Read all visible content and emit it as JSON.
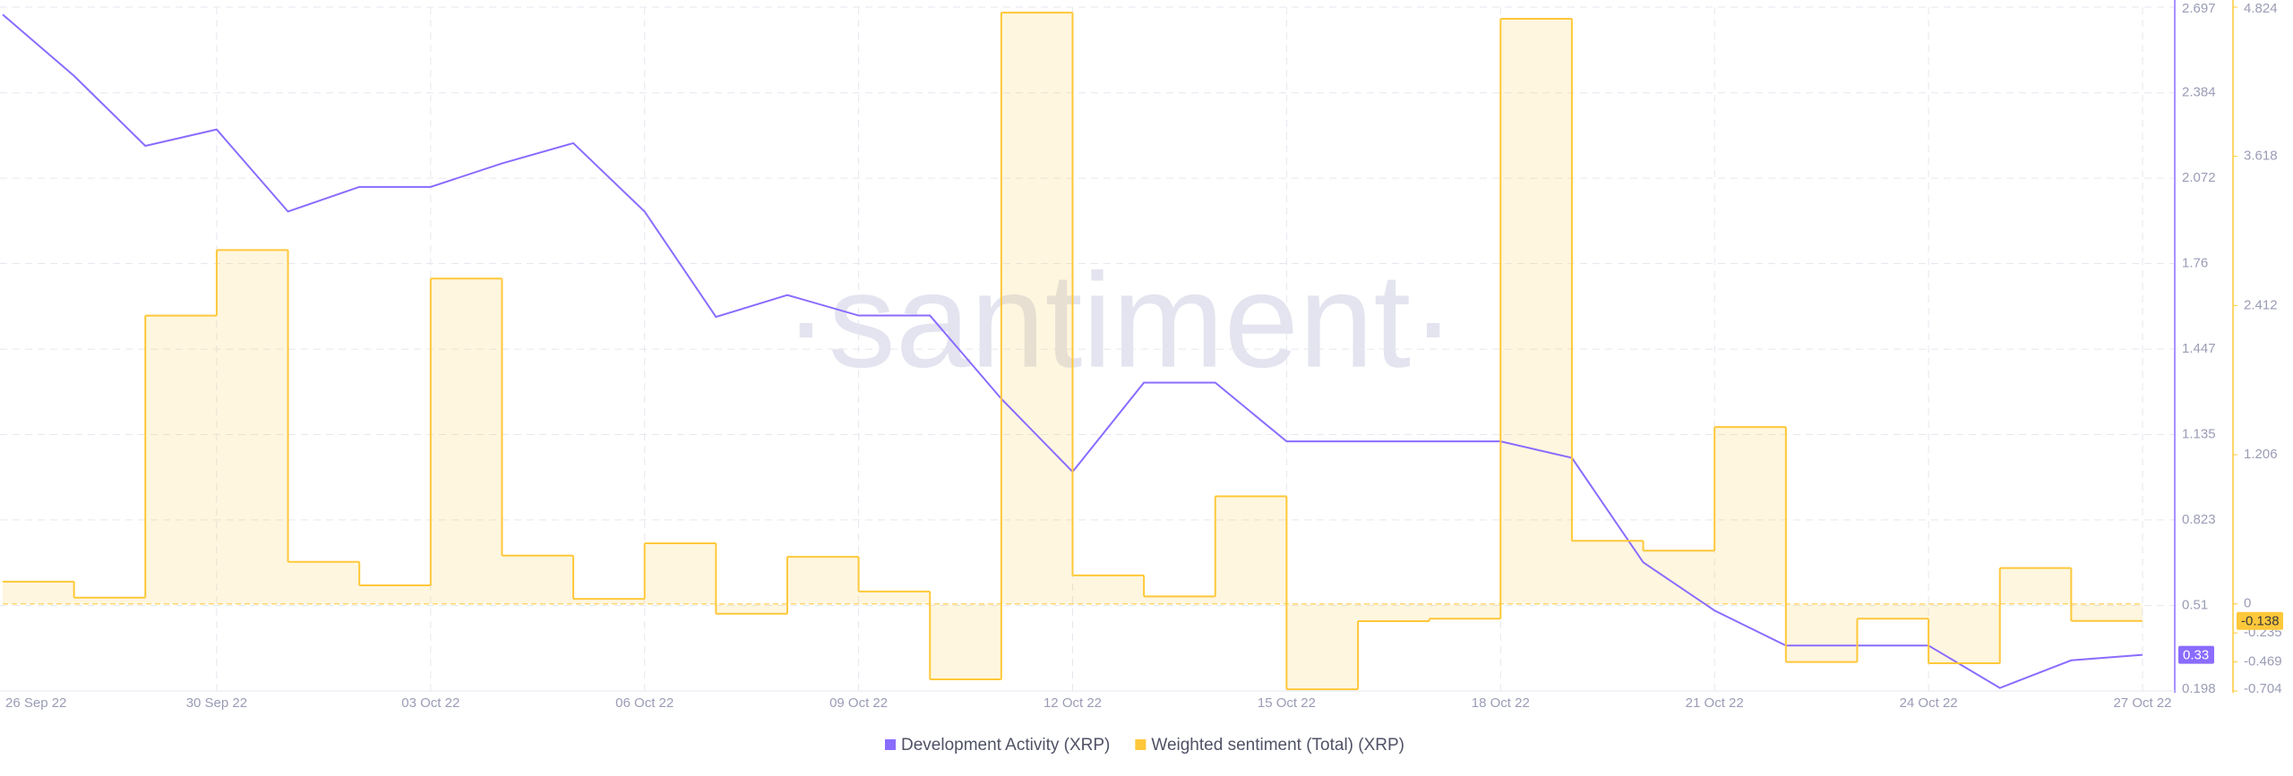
{
  "chart_data": {
    "type": "line",
    "watermark": "·santiment·",
    "x": [
      "2022-09-27",
      "2022-09-28",
      "2022-09-29",
      "2022-09-30",
      "2022-10-01",
      "2022-10-02",
      "2022-10-03",
      "2022-10-04",
      "2022-10-05",
      "2022-10-06",
      "2022-10-07",
      "2022-10-08",
      "2022-10-09",
      "2022-10-10",
      "2022-10-11",
      "2022-10-12",
      "2022-10-13",
      "2022-10-14",
      "2022-10-15",
      "2022-10-16",
      "2022-10-17",
      "2022-10-18",
      "2022-10-19",
      "2022-10-20",
      "2022-10-21",
      "2022-10-22",
      "2022-10-23",
      "2022-10-24",
      "2022-10-25",
      "2022-10-26",
      "2022-10-27"
    ],
    "xlim": [
      "2022-09-27",
      "2022-10-27"
    ],
    "xticks": [
      {
        "value": "2022-09-26",
        "label": "26 Sep 22"
      },
      {
        "value": "2022-09-30",
        "label": "30 Sep 22"
      },
      {
        "value": "2022-10-03",
        "label": "03 Oct 22"
      },
      {
        "value": "2022-10-06",
        "label": "06 Oct 22"
      },
      {
        "value": "2022-10-09",
        "label": "09 Oct 22"
      },
      {
        "value": "2022-10-12",
        "label": "12 Oct 22"
      },
      {
        "value": "2022-10-15",
        "label": "15 Oct 22"
      },
      {
        "value": "2022-10-18",
        "label": "18 Oct 22"
      },
      {
        "value": "2022-10-21",
        "label": "21 Oct 22"
      },
      {
        "value": "2022-10-24",
        "label": "24 Oct 22"
      },
      {
        "value": "2022-10-27",
        "label": "27 Oct 22"
      }
    ],
    "ylim": [
      0.198,
      2.697
    ],
    "yticks": [
      0.198,
      0.51,
      0.823,
      1.135,
      1.447,
      1.76,
      2.072,
      2.384,
      2.697
    ],
    "y2lim": [
      -0.704,
      4.824
    ],
    "y2ticks": [
      -0.704,
      -0.469,
      -0.235,
      0,
      1.206,
      2.412,
      3.618,
      4.824
    ],
    "grid": true,
    "series": [
      {
        "name": "Development Activity (XRP)",
        "color": "#8a6cff",
        "type": "line",
        "last_value": 0.33,
        "values": [
          2.67,
          2.446,
          2.19,
          2.25,
          1.95,
          2.04,
          2.04,
          2.126,
          2.2,
          1.95,
          1.565,
          1.645,
          1.57,
          1.57,
          1.266,
          0.999,
          1.325,
          1.325,
          1.11,
          1.11,
          1.11,
          1.11,
          1.05,
          0.668,
          0.492,
          0.364,
          0.364,
          0.364,
          0.209,
          0.31,
          0.33
        ]
      },
      {
        "name": "Weighted sentiment (Total) (XRP)",
        "color": "#ffc83a",
        "type": "step-area",
        "axis": "y2",
        "last_value": -0.138,
        "values": [
          0.18,
          0.05,
          2.33,
          2.86,
          0.34,
          0.15,
          2.63,
          0.39,
          0.04,
          0.49,
          -0.08,
          0.38,
          0.1,
          -0.61,
          4.78,
          0.23,
          0.06,
          0.87,
          -0.69,
          -0.14,
          -0.12,
          4.73,
          0.51,
          0.43,
          1.43,
          -0.47,
          -0.12,
          -0.48,
          0.29,
          -0.138,
          null
        ]
      }
    ]
  }
}
